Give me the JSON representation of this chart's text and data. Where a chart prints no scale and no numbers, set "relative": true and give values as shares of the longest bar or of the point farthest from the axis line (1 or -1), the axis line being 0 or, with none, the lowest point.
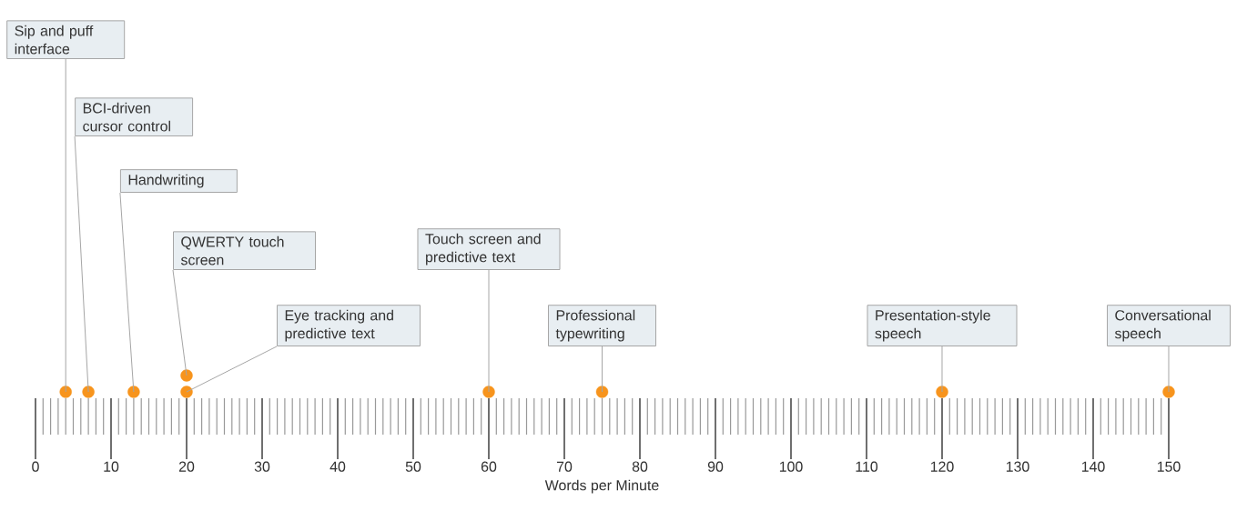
{
  "chart_data": {
    "type": "scatter",
    "xlabel": "Words per Minute",
    "x": [
      4,
      7,
      13,
      20,
      20,
      60,
      75,
      120,
      150
    ],
    "relative": true,
    "series": [
      {
        "color": "#f7941d",
        "values": [
          0,
          0,
          0,
          1,
          0,
          0,
          0,
          0,
          0
        ]
      }
    ],
    "marker": "circle",
    "xlim": [
      0,
      150
    ],
    "xticks": [
      0,
      10,
      20,
      30,
      40,
      50,
      60,
      70,
      80,
      90,
      100,
      110,
      120,
      130,
      140,
      150
    ],
    "tick_labels": "x",
    "annotations": [
      "Sip and puff interface",
      "BCI-driven cursor control",
      "Handwriting",
      "QWERTY touch screen",
      "Eye tracking and predictive text",
      "Touch screen and predictive text",
      "Professional typewriting",
      "Presentation-style speech",
      "Conversational speech"
    ]
  }
}
